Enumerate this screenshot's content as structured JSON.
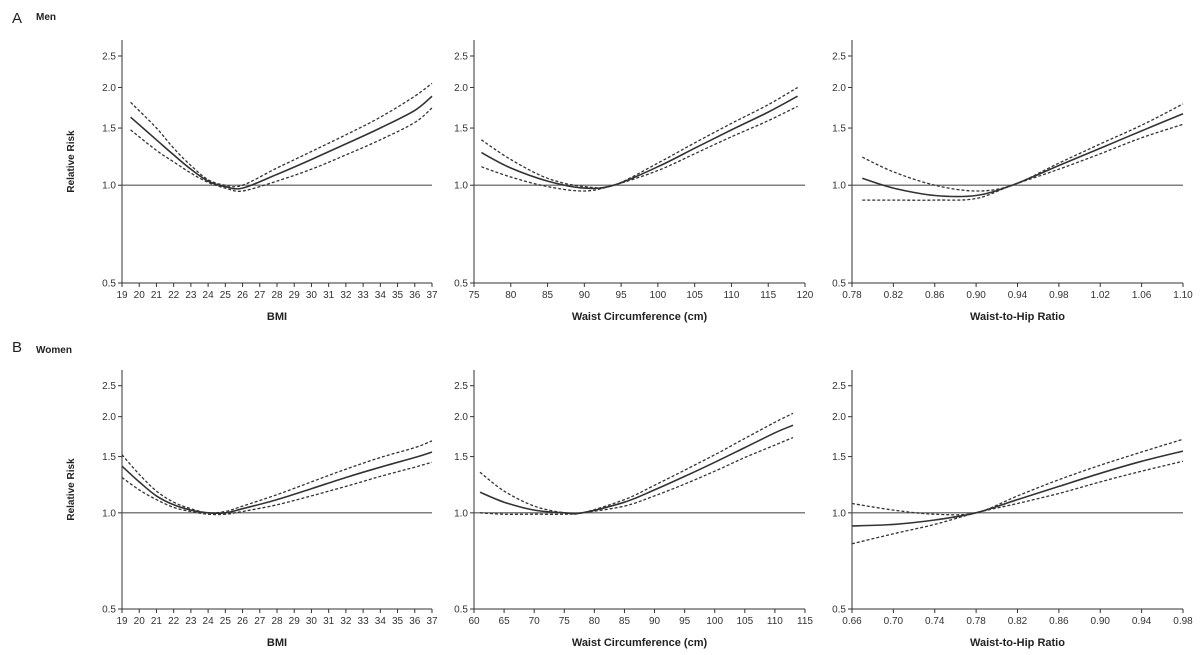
{
  "panels": [
    {
      "letter": "A",
      "title": "Men"
    },
    {
      "letter": "B",
      "title": "Women"
    }
  ],
  "chart_data": [
    {
      "type": "line",
      "panel": "A",
      "title": "",
      "xlabel": "BMI",
      "ylabel": "Relative Risk",
      "xlim": [
        19,
        37
      ],
      "ylim": [
        0.5,
        2.8
      ],
      "yscale": "log",
      "xticks": [
        19,
        20,
        21,
        22,
        23,
        24,
        25,
        26,
        27,
        28,
        29,
        30,
        31,
        32,
        33,
        34,
        35,
        36,
        37
      ],
      "yticks": [
        0.5,
        1.0,
        1.5,
        2.0,
        2.5
      ],
      "reference_line": 1.0,
      "x": [
        19.5,
        21,
        22,
        23,
        24,
        25,
        26,
        28,
        30,
        32,
        34,
        36,
        37
      ],
      "series": [
        {
          "style": "solid",
          "values": [
            1.62,
            1.38,
            1.24,
            1.12,
            1.03,
            0.99,
            0.98,
            1.08,
            1.2,
            1.34,
            1.5,
            1.7,
            1.88
          ]
        },
        {
          "style": "dashed",
          "values": [
            1.8,
            1.5,
            1.3,
            1.15,
            1.04,
            1.0,
            1.0,
            1.13,
            1.27,
            1.43,
            1.62,
            1.88,
            2.06
          ]
        },
        {
          "style": "dashed",
          "values": [
            1.48,
            1.28,
            1.18,
            1.09,
            1.02,
            0.98,
            0.96,
            1.03,
            1.12,
            1.24,
            1.38,
            1.56,
            1.73
          ]
        }
      ]
    },
    {
      "type": "line",
      "panel": "A",
      "title": "",
      "xlabel": "Waist Circumference (cm)",
      "ylabel": "",
      "xlim": [
        75,
        120
      ],
      "ylim": [
        0.5,
        2.8
      ],
      "yscale": "log",
      "xticks": [
        75,
        80,
        85,
        90,
        95,
        100,
        105,
        110,
        115,
        120
      ],
      "yticks": [
        0.5,
        1.0,
        1.5,
        2.0,
        2.5
      ],
      "reference_line": 1.0,
      "x": [
        76,
        80,
        85,
        90,
        94,
        100,
        105,
        110,
        115,
        119
      ],
      "series": [
        {
          "style": "solid",
          "values": [
            1.26,
            1.13,
            1.03,
            0.98,
            1.0,
            1.14,
            1.3,
            1.48,
            1.68,
            1.88
          ]
        },
        {
          "style": "dashed",
          "values": [
            1.38,
            1.2,
            1.05,
            0.99,
            1.0,
            1.17,
            1.35,
            1.55,
            1.77,
            2.0
          ]
        },
        {
          "style": "dashed",
          "values": [
            1.14,
            1.06,
            0.99,
            0.96,
            1.0,
            1.11,
            1.25,
            1.41,
            1.58,
            1.75
          ]
        }
      ]
    },
    {
      "type": "line",
      "panel": "A",
      "title": "",
      "xlabel": "Waist-to-Hip Ratio",
      "ylabel": "",
      "xlim": [
        0.78,
        1.1
      ],
      "ylim": [
        0.5,
        2.8
      ],
      "yscale": "log",
      "xticks": [
        "0.78",
        "0.82",
        "0.86",
        "0.90",
        "0.94",
        "0.98",
        "1.02",
        "1.06",
        "1.10"
      ],
      "yticks": [
        0.5,
        1.0,
        1.5,
        2.0,
        2.5
      ],
      "reference_line": 1.0,
      "x": [
        0.79,
        0.82,
        0.86,
        0.9,
        0.935,
        0.98,
        1.02,
        1.06,
        1.1
      ],
      "series": [
        {
          "style": "solid",
          "values": [
            1.05,
            0.98,
            0.93,
            0.93,
            1.0,
            1.15,
            1.3,
            1.47,
            1.66
          ]
        },
        {
          "style": "dashed",
          "values": [
            1.22,
            1.1,
            1.0,
            0.96,
            1.0,
            1.17,
            1.34,
            1.53,
            1.78
          ]
        },
        {
          "style": "dashed",
          "values": [
            0.9,
            0.9,
            0.9,
            0.91,
            1.0,
            1.12,
            1.25,
            1.4,
            1.54
          ]
        }
      ]
    },
    {
      "type": "line",
      "panel": "B",
      "title": "",
      "xlabel": "BMI",
      "ylabel": "Relative Risk",
      "xlim": [
        19,
        37
      ],
      "ylim": [
        0.5,
        2.8
      ],
      "yscale": "log",
      "xticks": [
        19,
        20,
        21,
        22,
        23,
        24,
        25,
        26,
        27,
        28,
        29,
        30,
        31,
        32,
        33,
        34,
        35,
        36,
        37
      ],
      "yticks": [
        0.5,
        1.0,
        1.5,
        2.0,
        2.5
      ],
      "reference_line": 1.0,
      "x": [
        19,
        20,
        21,
        22,
        23,
        24,
        25,
        26,
        28,
        30,
        32,
        34,
        36,
        37
      ],
      "series": [
        {
          "style": "solid",
          "values": [
            1.4,
            1.25,
            1.13,
            1.06,
            1.02,
            1.0,
            1.0,
            1.03,
            1.1,
            1.19,
            1.29,
            1.39,
            1.49,
            1.55
          ]
        },
        {
          "style": "dashed",
          "values": [
            1.52,
            1.32,
            1.17,
            1.08,
            1.03,
            1.0,
            1.01,
            1.05,
            1.14,
            1.25,
            1.37,
            1.49,
            1.6,
            1.68
          ]
        },
        {
          "style": "dashed",
          "values": [
            1.29,
            1.18,
            1.1,
            1.04,
            1.01,
            0.99,
            0.99,
            1.01,
            1.06,
            1.13,
            1.21,
            1.3,
            1.39,
            1.44
          ]
        }
      ]
    },
    {
      "type": "line",
      "panel": "B",
      "title": "",
      "xlabel": "Waist Circumference (cm)",
      "ylabel": "",
      "xlim": [
        60,
        115
      ],
      "ylim": [
        0.5,
        2.8
      ],
      "yscale": "log",
      "xticks": [
        60,
        65,
        70,
        75,
        80,
        85,
        90,
        95,
        100,
        105,
        110,
        115
      ],
      "yticks": [
        0.5,
        1.0,
        1.5,
        2.0,
        2.5
      ],
      "reference_line": 1.0,
      "x": [
        61,
        65,
        70,
        75,
        78,
        85,
        90,
        95,
        100,
        105,
        110,
        113
      ],
      "series": [
        {
          "style": "solid",
          "values": [
            1.16,
            1.08,
            1.02,
            1.0,
            1.0,
            1.08,
            1.18,
            1.3,
            1.44,
            1.6,
            1.78,
            1.88
          ]
        },
        {
          "style": "dashed",
          "values": [
            1.34,
            1.17,
            1.05,
            1.0,
            1.0,
            1.1,
            1.22,
            1.36,
            1.52,
            1.71,
            1.92,
            2.05
          ]
        },
        {
          "style": "dashed",
          "values": [
            1.0,
            0.99,
            0.99,
            0.99,
            1.0,
            1.05,
            1.13,
            1.23,
            1.35,
            1.49,
            1.63,
            1.72
          ]
        }
      ]
    },
    {
      "type": "line",
      "panel": "B",
      "title": "",
      "xlabel": "Waist-to-Hip Ratio",
      "ylabel": "",
      "xlim": [
        0.66,
        0.98
      ],
      "ylim": [
        0.5,
        2.8
      ],
      "yscale": "log",
      "xticks": [
        "0.66",
        "0.70",
        "0.74",
        "0.78",
        "0.82",
        "0.86",
        "0.90",
        "0.94",
        "0.98"
      ],
      "yticks": [
        0.5,
        1.0,
        1.5,
        2.0,
        2.5
      ],
      "reference_line": 1.0,
      "x": [
        0.66,
        0.7,
        0.74,
        0.78,
        0.82,
        0.86,
        0.9,
        0.94,
        0.98
      ],
      "series": [
        {
          "style": "solid",
          "values": [
            0.91,
            0.92,
            0.95,
            1.0,
            1.1,
            1.21,
            1.33,
            1.45,
            1.56
          ]
        },
        {
          "style": "dashed",
          "values": [
            1.07,
            1.02,
            0.99,
            1.0,
            1.13,
            1.27,
            1.41,
            1.55,
            1.7
          ]
        },
        {
          "style": "dashed",
          "values": [
            0.8,
            0.86,
            0.92,
            1.0,
            1.07,
            1.15,
            1.25,
            1.35,
            1.45
          ]
        }
      ]
    }
  ]
}
